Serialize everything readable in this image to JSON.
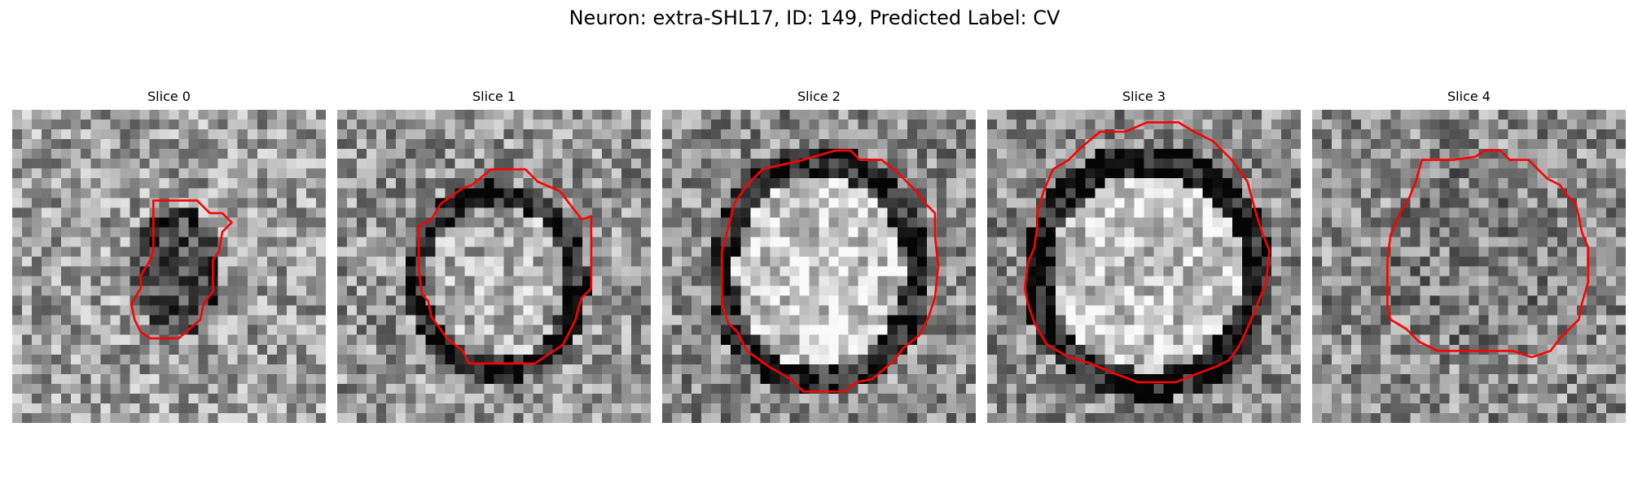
{
  "figure": {
    "title": "Neuron: extra-SHL17, ID: 149, Predicted Label: CV",
    "contour_color": "#ff0000",
    "colormap": "grayscale",
    "panels": [
      {
        "title": "Slice 0"
      },
      {
        "title": "Slice 1"
      },
      {
        "title": "Slice 2"
      },
      {
        "title": "Slice 3"
      },
      {
        "title": "Slice 4"
      }
    ]
  }
}
